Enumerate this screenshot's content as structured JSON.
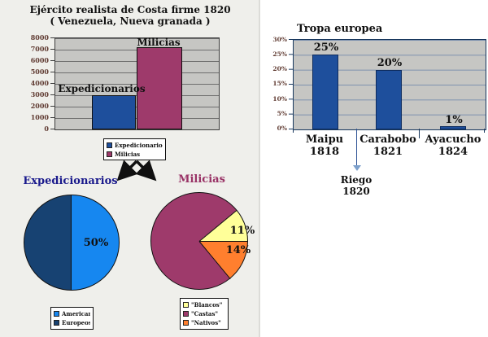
{
  "page": {
    "title_line1": "Ejército realista de Costa firme 1820",
    "title_line2": "( Venezuela, Nueva granada )"
  },
  "colors": {
    "bar_blue": "#1E4F9C",
    "bar_plum": "#9E3A6B",
    "pie_light_blue": "#1687F0",
    "pie_dark_blue": "#174272",
    "pie_yellow": "#FFFF99",
    "pie_orange": "#FF7F2E",
    "plot_background": "#C6C6C3",
    "axis_label_brown": "#5F3A31",
    "pie1_title_navy": "#1A1A8C",
    "pie2_title_maroon": "#993366",
    "annotation_arrow_blue": "#2F5496"
  },
  "chart_data": [
    {
      "id": "realista-bar-chart",
      "type": "bar",
      "categories": [
        "Expedicionarios",
        "Milicias"
      ],
      "values": [
        3000,
        7200
      ],
      "colors": [
        "#1E4F9C",
        "#9E3A6B"
      ],
      "ylim": [
        0,
        8000
      ],
      "yticks": [
        "8000",
        "7000",
        "6000",
        "5000",
        "4000",
        "3000",
        "2000",
        "1000",
        "0"
      ],
      "grid": true,
      "legend": [
        "Expedicionarios",
        "Milicias"
      ],
      "legend_position": "bottom"
    },
    {
      "id": "tropa-europea-bar-chart",
      "type": "bar",
      "title": "Tropa europea",
      "categories": [
        [
          "Maipu",
          "1818"
        ],
        [
          "Carabobo",
          "1821"
        ],
        [
          "Ayacucho",
          "1824"
        ]
      ],
      "values": [
        25,
        20,
        1
      ],
      "value_labels": [
        "25%",
        "20%",
        "1%"
      ],
      "colors": [
        "#1E4F9C"
      ],
      "ylim": [
        0,
        30
      ],
      "yticks": [
        "30%",
        "25%",
        "20%",
        "15%",
        "10%",
        "5%",
        "0%"
      ],
      "grid": true,
      "annotation": {
        "line1": "Riego",
        "line2": "1820"
      }
    },
    {
      "id": "expedicionarios-pie-chart",
      "type": "pie",
      "title": "Expedicionarios",
      "slices": [
        {
          "label": "Americanos",
          "value": 50,
          "color": "#1687F0"
        },
        {
          "label": "Europeos",
          "value": 50,
          "color": "#174272"
        }
      ],
      "value_label": "50%",
      "legend_position": "bottom"
    },
    {
      "id": "milicias-pie-chart",
      "type": "pie",
      "title": "Milicias",
      "slices": [
        {
          "label": "\"Blancos\"",
          "value": 11,
          "color": "#FFFF99"
        },
        {
          "label": "\"Castas\"",
          "value": 75,
          "color": "#9E3A6B"
        },
        {
          "label": "\"Nativos\"",
          "value": 14,
          "color": "#FF7F2E"
        }
      ],
      "value_labels": [
        "11%",
        "14%"
      ],
      "legend_position": "bottom"
    }
  ]
}
